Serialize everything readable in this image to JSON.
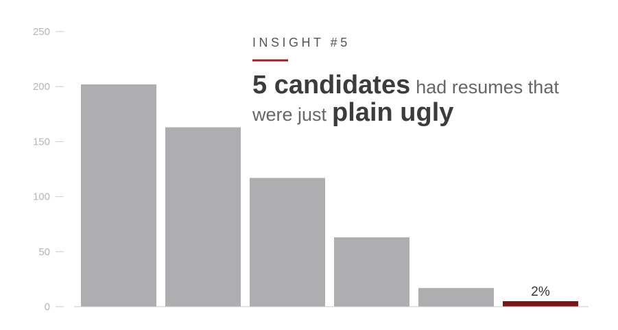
{
  "chart_data": {
    "type": "bar",
    "categories": [
      null,
      null,
      null,
      null,
      null,
      null
    ],
    "values": [
      202,
      163,
      117,
      63,
      17,
      5
    ],
    "colors": [
      "#aeaeb0",
      "#aeaeb0",
      "#aeaeb0",
      "#aeaeb0",
      "#aeaeb0",
      "#7d1417"
    ],
    "ylim": [
      0,
      250
    ],
    "yticks": [
      0,
      50,
      100,
      150,
      200,
      250
    ],
    "annotation": "2%",
    "kicker": "INSIGHT #5",
    "headline": [
      [
        {
          "text": "5 candidates",
          "bold": true
        },
        {
          "text": "had resumes that",
          "bold": false
        }
      ],
      [
        {
          "text": "were just",
          "bold": false
        },
        {
          "text": "plain ugly",
          "bold": true
        }
      ]
    ]
  }
}
